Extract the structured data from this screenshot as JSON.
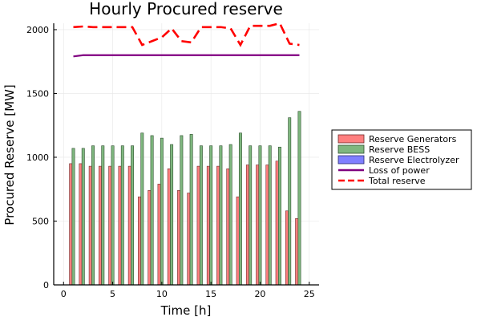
{
  "chart_data": {
    "type": "bar",
    "title": "Hourly Procured reserve",
    "xlabel": "Time [h]",
    "ylabel": "Procured Reserve [MW]",
    "xlim": [
      -1,
      26
    ],
    "ylim": [
      0,
      2050
    ],
    "x_ticks": [
      "0",
      "5",
      "10",
      "15",
      "20",
      "25"
    ],
    "y_ticks": [
      "0",
      "500",
      "1000",
      "1500",
      "2000"
    ],
    "grid": true,
    "legend_position": "right",
    "x": [
      1,
      2,
      3,
      4,
      5,
      6,
      7,
      8,
      9,
      10,
      11,
      12,
      13,
      14,
      15,
      16,
      17,
      18,
      19,
      20,
      21,
      22,
      23,
      24
    ],
    "series": [
      {
        "name": "Reserve Generators",
        "kind": "bar",
        "color": "#ff7f7f",
        "stroke": "#6f2a2a",
        "values": [
          950,
          950,
          930,
          930,
          930,
          930,
          930,
          690,
          740,
          790,
          910,
          740,
          720,
          930,
          930,
          930,
          910,
          690,
          940,
          940,
          940,
          970,
          580,
          520
        ]
      },
      {
        "name": "Reserve BESS",
        "kind": "bar",
        "color": "#7fb77f",
        "stroke": "#2e4f2e",
        "values": [
          1070,
          1070,
          1090,
          1090,
          1090,
          1090,
          1090,
          1190,
          1170,
          1150,
          1100,
          1170,
          1180,
          1090,
          1090,
          1090,
          1100,
          1190,
          1090,
          1090,
          1090,
          1080,
          1310,
          1360
        ]
      },
      {
        "name": "Reserve Electrolyzer",
        "kind": "bar",
        "color": "#7f7fff",
        "stroke": "#2a2a6f",
        "values": [
          0,
          0,
          0,
          0,
          0,
          0,
          0,
          0,
          0,
          0,
          0,
          0,
          0,
          0,
          0,
          0,
          0,
          0,
          0,
          0,
          0,
          0,
          0,
          0
        ]
      },
      {
        "name": "Loss of power",
        "kind": "line",
        "color": "#800080",
        "values": [
          1790,
          1800,
          1800,
          1800,
          1800,
          1800,
          1800,
          1800,
          1800,
          1800,
          1800,
          1800,
          1800,
          1800,
          1800,
          1800,
          1800,
          1800,
          1800,
          1800,
          1800,
          1800,
          1800,
          1800
        ]
      },
      {
        "name": "Total reserve",
        "kind": "line",
        "dashed": true,
        "color": "#ff0000",
        "values": [
          2020,
          2025,
          2020,
          2020,
          2020,
          2020,
          2020,
          1880,
          1910,
          1940,
          2010,
          1910,
          1900,
          2020,
          2020,
          2020,
          2010,
          1880,
          2030,
          2030,
          2030,
          2050,
          1890,
          1880
        ]
      }
    ]
  }
}
